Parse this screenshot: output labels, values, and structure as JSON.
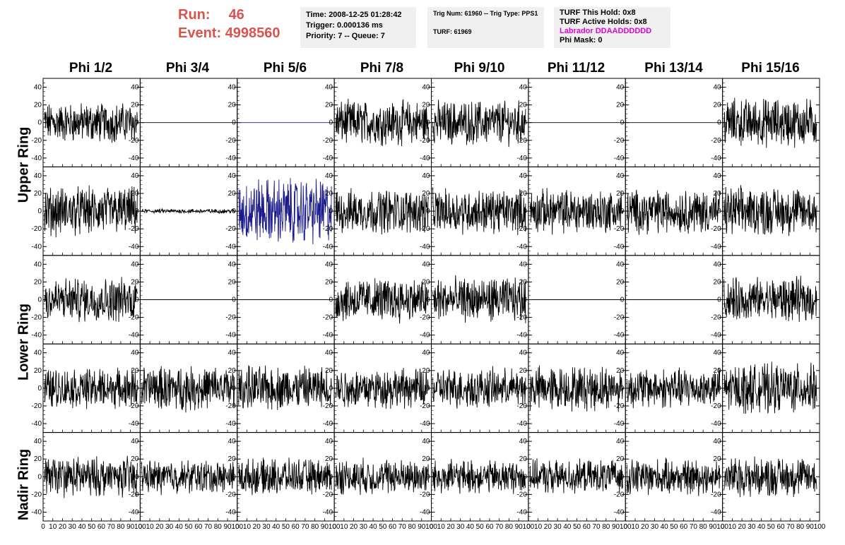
{
  "run_label": "Run:",
  "run_value": "46",
  "event_label": "Event:",
  "event_value": "4998560",
  "info": {
    "time": "Time: 2008-12-25 01:28:42",
    "trigger": "Trigger: 0.000136 ms",
    "priority": "Priority: 7 -- Queue: 7",
    "trig_num": "Trig Num: 61960 -- Trig Type: PPS1",
    "turf": "TURF: 61969",
    "turf_this_hold": "TURF This Hold: 0x8",
    "turf_active_holds": "TURF Active Holds: 0x8",
    "labrador": "Labrador DDAADDDDDD",
    "phi_mask": "Phi Mask: 0"
  },
  "colors": {
    "run_red": "#d9534f",
    "labrador_magenta": "#e000e0",
    "trace_black": "#000000",
    "trace_blue": "#1a1a8c",
    "info_bg": "#f0f0f0"
  },
  "columns": [
    "Phi 1/2",
    "Phi 3/4",
    "Phi 5/6",
    "Phi 7/8",
    "Phi 9/10",
    "Phi 11/12",
    "Phi 13/14",
    "Phi 15/16"
  ],
  "ring_labels": [
    "Upper Ring",
    "Lower Ring",
    "Nadir Ring"
  ],
  "chart_data": {
    "type": "line",
    "rows": 5,
    "cols": 8,
    "ylim": [
      -50,
      50
    ],
    "xlim": [
      0,
      100
    ],
    "y_ticks": [
      -40,
      -20,
      0,
      20,
      40
    ],
    "x_ticks": [
      0,
      10,
      20,
      30,
      40,
      50,
      60,
      70,
      80,
      90,
      100
    ],
    "x_tick_labels": "0 10 20 30 40 50 60 70 80 90 100",
    "panel_amplitude": [
      [
        18,
        0,
        0,
        20,
        20,
        0,
        0,
        22
      ],
      [
        22,
        2,
        30,
        20,
        20,
        20,
        20,
        22
      ],
      [
        20,
        0,
        0,
        20,
        20,
        0,
        0,
        20
      ],
      [
        18,
        20,
        20,
        18,
        18,
        20,
        18,
        22
      ],
      [
        18,
        15,
        16,
        16,
        15,
        15,
        16,
        18
      ]
    ],
    "panel_color": [
      [
        "black",
        "black",
        "blue",
        "black",
        "black",
        "black",
        "black",
        "black"
      ],
      [
        "black",
        "black",
        "blue",
        "black",
        "black",
        "black",
        "black",
        "black"
      ],
      [
        "black",
        "black",
        "black",
        "black",
        "black",
        "black",
        "black",
        "black"
      ],
      [
        "black",
        "black",
        "black",
        "black",
        "black",
        "black",
        "black",
        "black"
      ],
      [
        "black",
        "black",
        "black",
        "black",
        "black",
        "black",
        "black",
        "black"
      ]
    ]
  }
}
